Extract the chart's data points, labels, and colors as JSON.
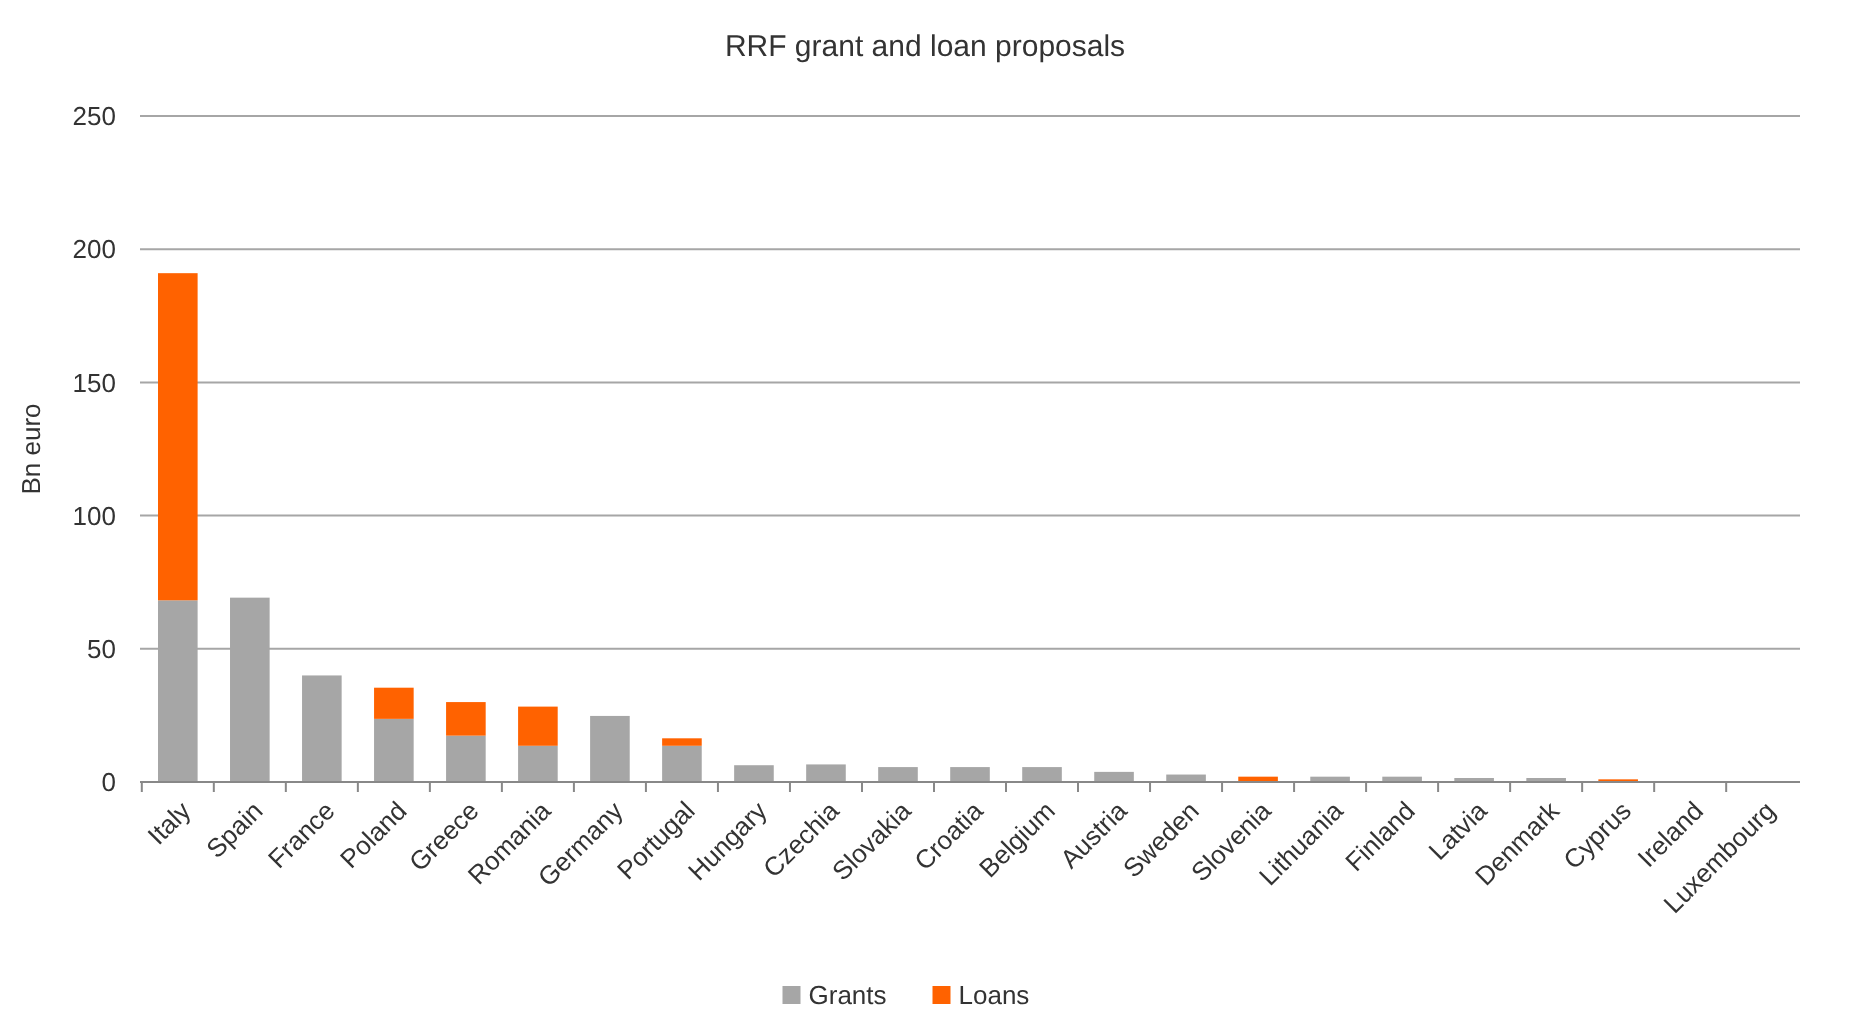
{
  "chart_data": {
    "type": "bar",
    "title": "RRF grant and loan proposals",
    "ylabel": "Bn euro",
    "stacked": true,
    "categories": [
      "Italy",
      "Spain",
      "France",
      "Poland",
      "Greece",
      "Romania",
      "Germany",
      "Portugal",
      "Hungary",
      "Czechia",
      "Slovakia",
      "Croatia",
      "Belgium",
      "Austria",
      "Sweden",
      "Slovenia",
      "Lithuania",
      "Finland",
      "Latvia",
      "Denmark",
      "Cyprus",
      "Ireland",
      "Luxembourg"
    ],
    "series": [
      {
        "name": "Grants",
        "color": "#a6a6a6",
        "values": [
          68.2,
          69.2,
          40,
          23.7,
          17.4,
          13.6,
          24.8,
          13.6,
          6.3,
          6.6,
          5.6,
          5.6,
          5.6,
          3.8,
          2.8,
          0.2,
          2,
          2,
          1.5,
          1.5,
          0.2,
          0,
          0
        ]
      },
      {
        "name": "Loans",
        "color": "#ff6200",
        "values": [
          122.8,
          0,
          0,
          11.7,
          12.6,
          14.7,
          0,
          2.8,
          0,
          0,
          0,
          0,
          0,
          0,
          0,
          1.8,
          0,
          0,
          0,
          0,
          0.8,
          0,
          0
        ]
      }
    ],
    "ylim": [
      0,
      250
    ],
    "yticks": [
      0,
      50,
      100,
      150,
      200,
      250
    ],
    "grid": "y",
    "legend": "bottom"
  }
}
